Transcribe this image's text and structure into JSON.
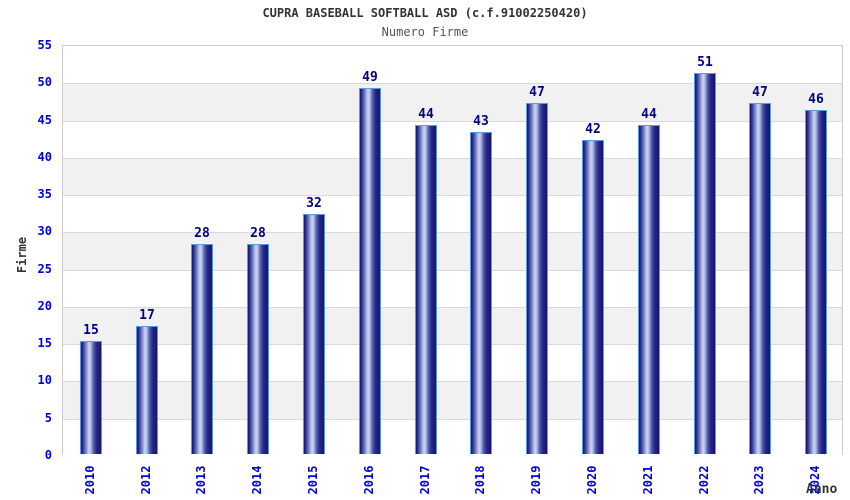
{
  "header": {
    "title": "CUPRA BASEBALL SOFTBALL ASD (c.f.91002250420)",
    "subtitle": "Numero Firme"
  },
  "axes": {
    "y_label": "Firme",
    "x_label": "Anno"
  },
  "chart_data": {
    "type": "bar",
    "title": "CUPRA BASEBALL SOFTBALL ASD (c.f.91002250420)",
    "subtitle": "Numero Firme",
    "xlabel": "Anno",
    "ylabel": "Firme",
    "categories": [
      "2010",
      "2012",
      "2013",
      "2014",
      "2015",
      "2016",
      "2017",
      "2018",
      "2019",
      "2020",
      "2021",
      "2022",
      "2023",
      "2024"
    ],
    "values": [
      15,
      17,
      28,
      28,
      32,
      49,
      44,
      43,
      47,
      42,
      44,
      51,
      47,
      46
    ],
    "ylim": [
      0,
      55
    ],
    "ytick_step": 5,
    "grid": "horizontal-bands-alternating",
    "legend": "none",
    "colors": {
      "bar_dark": "#15156b",
      "bar_mid": "#5560ae",
      "bar_highlight": "#cdd8f2",
      "bar_border": "#5a9be0",
      "value_label": "#000080",
      "tick_label": "#0000dd",
      "band_gray": "#f1f1f1",
      "band_white": "#ffffff",
      "grid_line": "#d9d9d9",
      "plot_border": "#cccccc",
      "title_color": "#333333",
      "subtitle_color": "#555555"
    }
  }
}
